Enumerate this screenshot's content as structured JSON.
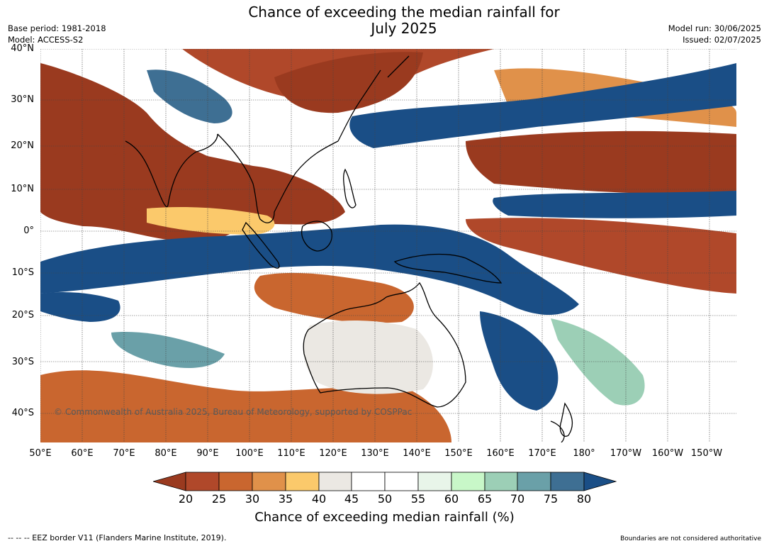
{
  "title": {
    "line1": "Chance of exceeding the median rainfall for",
    "line2": "July 2025"
  },
  "meta": {
    "base_period": "Base period: 1981-2018",
    "model": "Model: ACCESS-S2",
    "model_run": "Model run: 30/06/2025",
    "issued": "Issued: 02/07/2025"
  },
  "map": {
    "latitude_labels": [
      "40°N",
      "30°N",
      "20°N",
      "10°N",
      "0°",
      "10°S",
      "20°S",
      "30°S",
      "40°S"
    ],
    "longitude_labels": [
      "50°E",
      "60°E",
      "70°E",
      "80°E",
      "90°E",
      "100°E",
      "110°E",
      "120°E",
      "130°E",
      "140°E",
      "150°E",
      "160°E",
      "170°E",
      "180°",
      "170°W",
      "160°W",
      "150°W"
    ],
    "copyright": "© Commonwealth of Australia 2025, Bureau of Meteorology, supported by COSPPac",
    "wet_color": "#1a4e86",
    "dry_color": "#9a3a1f"
  },
  "colorbar": {
    "ticks": [
      "20",
      "25",
      "30",
      "35",
      "40",
      "45",
      "50",
      "55",
      "60",
      "65",
      "70",
      "75",
      "80"
    ],
    "colors": [
      "#9a3a1f",
      "#b0482a",
      "#c9662f",
      "#e0914a",
      "#fbc96b",
      "#ebe8e3",
      "#ffffff",
      "#ffffff",
      "#e8f5e9",
      "#c8f7c8",
      "#9ccfb6",
      "#6aa0a8",
      "#3e6f93",
      "#1a4e86"
    ],
    "label": "Chance of exceeding median rainfall (%)"
  },
  "footer": {
    "eez_note": "--  --  -- EEZ border V11 (Flanders Marine Institute, 2019).",
    "boundaries_note": "Boundaries are not considered authoritative"
  }
}
